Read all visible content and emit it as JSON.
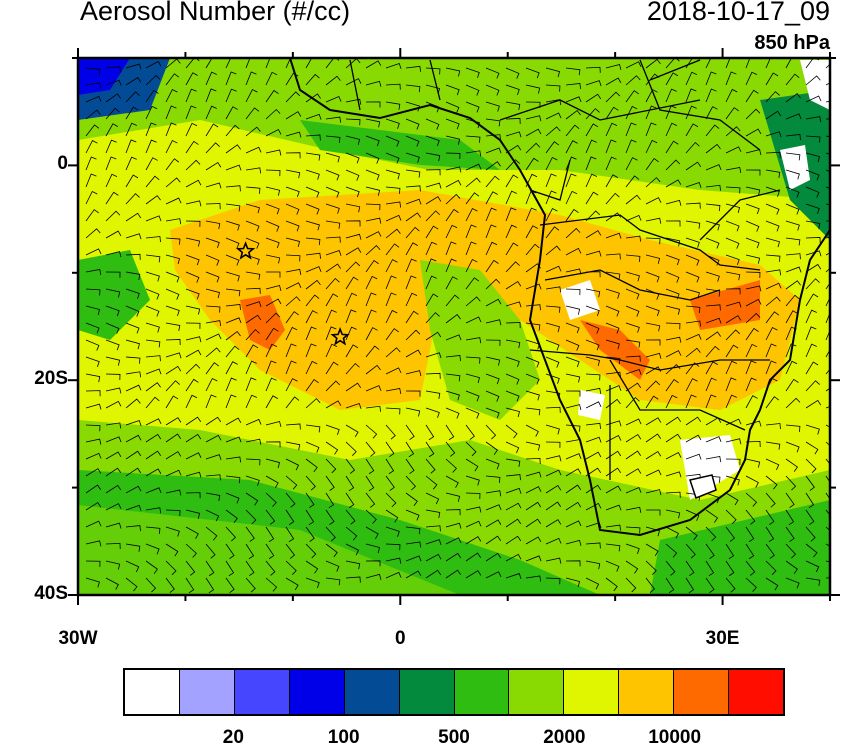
{
  "title": "Aerosol Number (#/cc)",
  "datetime": "2018-10-17_09",
  "level": "850 hPa",
  "axes": {
    "x_ticks": [
      {
        "lon": -30,
        "label": "30W"
      },
      {
        "lon": 0,
        "label": "0"
      },
      {
        "lon": 30,
        "label": "30E"
      }
    ],
    "y_ticks": [
      {
        "lat": 0,
        "label": "0"
      },
      {
        "lat": -20,
        "label": "20S"
      },
      {
        "lat": -40,
        "label": "40S"
      }
    ],
    "lon_range": [
      -30,
      40
    ],
    "lat_range": [
      -40,
      10
    ]
  },
  "markers": [
    {
      "type": "star",
      "lon": -14.4,
      "lat": -8
    },
    {
      "type": "star",
      "lon": -5.6,
      "lat": -16
    }
  ],
  "colorbar": {
    "colors": [
      "#ffffff",
      "#a3a3ff",
      "#4646ff",
      "#0000e8",
      "#034b94",
      "#038a3c",
      "#2fbd12",
      "#88da02",
      "#e0f500",
      "#ffc400",
      "#ff6a00",
      "#ff0e00"
    ],
    "labels": [
      {
        "boundary": 2,
        "text": "20"
      },
      {
        "boundary": 4,
        "text": "100"
      },
      {
        "boundary": 6,
        "text": "500"
      },
      {
        "boundary": 8,
        "text": "2000"
      },
      {
        "boundary": 10,
        "text": "10000"
      }
    ]
  }
}
